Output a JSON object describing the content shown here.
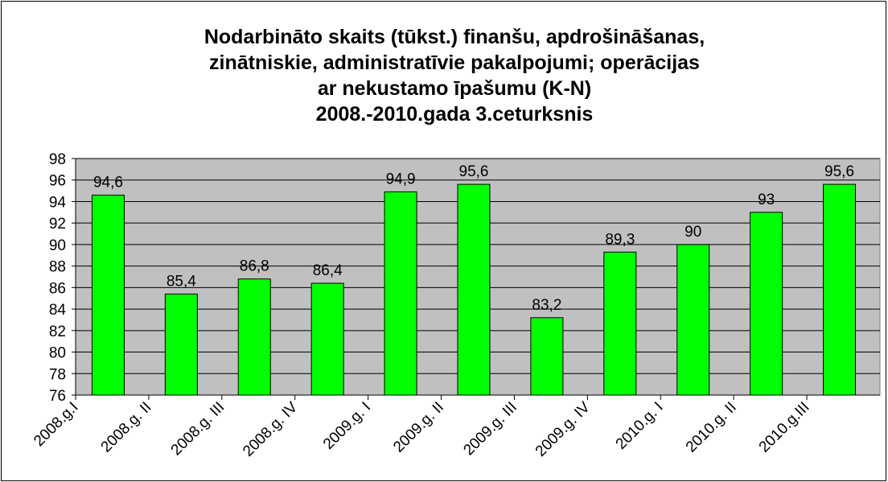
{
  "chart_data": {
    "type": "bar",
    "title": [
      "Nodarbināto skaits (tūkst.) finanšu, apdrošināšanas,",
      "zinātniskie, administratīvie pakalpojumi; operācijas",
      "ar nekustamo īpašumu (K-N)",
      "2008.-2010.gada 3.ceturksnis"
    ],
    "categories": [
      "2008.g.I",
      "2008.g. II",
      "2008.g. III",
      "2008.g. IV",
      "2009.g. I",
      "2009.g. II",
      "2009.g. III",
      "2009.g. IV",
      "2010.g. I",
      "2010.g. II",
      "2010.g.III"
    ],
    "values": [
      94.6,
      85.4,
      86.8,
      86.4,
      94.9,
      95.6,
      83.2,
      89.3,
      90,
      93,
      95.6
    ],
    "value_labels": [
      "94,6",
      "85,4",
      "86,8",
      "86,4",
      "94,9",
      "95,6",
      "83,2",
      "89,3",
      "90",
      "93",
      "95,6"
    ],
    "color": "#00ff00",
    "ylim": [
      76,
      98
    ],
    "yticks": [
      76,
      78,
      80,
      82,
      84,
      86,
      88,
      90,
      92,
      94,
      96,
      98
    ],
    "grid": true
  }
}
